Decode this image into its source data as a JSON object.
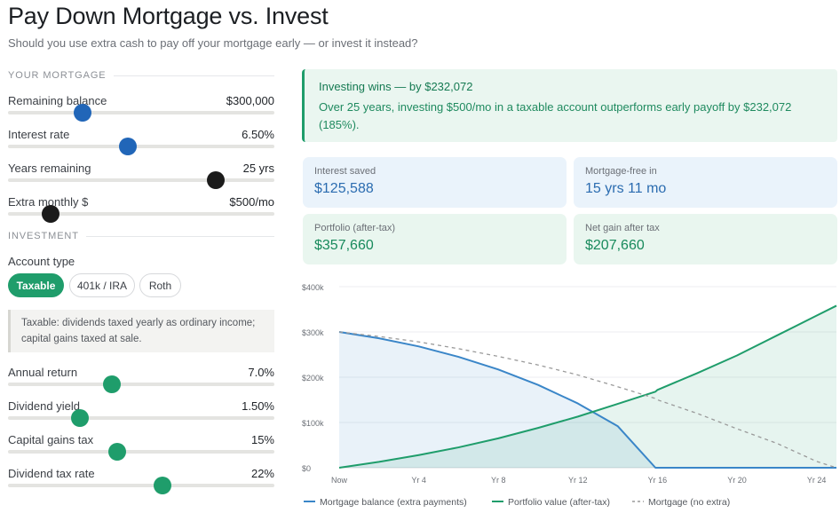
{
  "header": {
    "title": "Pay Down Mortgage vs. Invest",
    "subtitle": "Should you use extra cash to pay off your mortgage early — or invest it instead?"
  },
  "mortgage_section": {
    "heading": "YOUR MORTGAGE",
    "sliders": [
      {
        "label": "Remaining balance",
        "value": "$300,000",
        "level": 0.28,
        "color": "#2166b8"
      },
      {
        "label": "Interest rate",
        "value": "6.50%",
        "level": 0.45,
        "color": "#2166b8"
      },
      {
        "label": "Years remaining",
        "value": "25 yrs",
        "level": 0.78,
        "color": "#1b1b1b"
      },
      {
        "label": "Extra monthly $",
        "value": "$500/mo",
        "level": 0.16,
        "color": "#1b1b1b"
      }
    ]
  },
  "investment_section": {
    "heading": "INVESTMENT",
    "account_type_label": "Account type",
    "account_types": [
      {
        "label": "Taxable",
        "active": true
      },
      {
        "label": "401k / IRA",
        "active": false
      },
      {
        "label": "Roth",
        "active": false
      }
    ],
    "note": "Taxable: dividends taxed yearly as ordinary income; capital gains taxed at sale.",
    "sliders": [
      {
        "label": "Annual return",
        "value": "7.0%",
        "level": 0.39,
        "color": "#1f9d6b"
      },
      {
        "label": "Dividend yield",
        "value": "1.50%",
        "level": 0.27,
        "color": "#1f9d6b"
      },
      {
        "label": "Capital gains tax",
        "value": "15%",
        "level": 0.41,
        "color": "#1f9d6b"
      },
      {
        "label": "Dividend tax rate",
        "value": "22%",
        "level": 0.58,
        "color": "#1f9d6b"
      }
    ]
  },
  "result": {
    "title": "Investing wins — by $232,072",
    "text": "Over 25 years, investing $500/mo in a taxable account outperforms early payoff by $232,072 (185%)."
  },
  "stats": [
    {
      "label": "Interest saved",
      "value": "$125,588",
      "tone": "blue"
    },
    {
      "label": "Mortgage-free in",
      "value": "15 yrs 11 mo",
      "tone": "blue"
    },
    {
      "label": "Portfolio (after-tax)",
      "value": "$357,660",
      "tone": "green"
    },
    {
      "label": "Net gain after tax",
      "value": "$207,660",
      "tone": "green"
    }
  ],
  "chart_data": {
    "type": "line",
    "x": [
      0,
      2,
      4,
      6,
      8,
      10,
      12,
      14,
      15.9,
      16,
      18,
      20,
      22,
      24,
      25
    ],
    "xticks": [
      0,
      4,
      8,
      12,
      16,
      20,
      24
    ],
    "xtick_labels": [
      "Now",
      "Yr 4",
      "Yr 8",
      "Yr 12",
      "Yr 16",
      "Yr 20",
      "Yr 24"
    ],
    "xlim": [
      0,
      25
    ],
    "ylim": [
      0,
      400000
    ],
    "yticks": [
      0,
      100000,
      200000,
      300000,
      400000
    ],
    "ytick_labels": [
      "$0",
      "$100k",
      "$200k",
      "$300k",
      "$400k"
    ],
    "grid": true,
    "legend_position": "bottom",
    "series": [
      {
        "name": "Mortgage balance (extra payments)",
        "color": "#3a86c8",
        "style": "solid",
        "fill": true,
        "values": [
          300000,
          286000,
          268000,
          245000,
          217000,
          183000,
          142000,
          92000,
          0,
          0,
          0,
          0,
          0,
          0,
          0
        ]
      },
      {
        "name": "Portfolio value (after-tax)",
        "color": "#1f9d6b",
        "style": "solid",
        "fill": true,
        "values": [
          0,
          13000,
          28000,
          45000,
          65000,
          88000,
          113000,
          141000,
          168000,
          172000,
          209000,
          248000,
          292000,
          336000,
          358000
        ]
      },
      {
        "name": "Mortgage (no extra)",
        "color": "#9a9a9a",
        "style": "dashed",
        "fill": false,
        "values": [
          300000,
          290000,
          278000,
          263000,
          246000,
          227000,
          205000,
          179000,
          153000,
          150000,
          120000,
          86000,
          54000,
          14000,
          0
        ]
      }
    ]
  }
}
